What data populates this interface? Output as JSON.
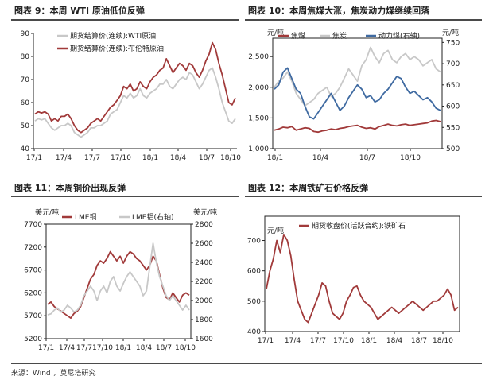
{
  "colors": {
    "red": "#a13a3a",
    "gray": "#c8c8c8",
    "blue": "#3f6aa1",
    "axis": "#222222"
  },
  "source": "来源：Wind ，莫尼塔研究",
  "chart_data": [
    {
      "id": "chart9",
      "title": "图表 9：本周 WTI 原油低位反弹",
      "type": "line",
      "x_ticks": [
        "17/1",
        "17/4",
        "17/7",
        "17/10",
        "18/1",
        "18/4",
        "18/7",
        "18/10"
      ],
      "ylim": [
        40,
        90
      ],
      "y_ticks": [
        40,
        50,
        60,
        70,
        80,
        90
      ],
      "legend": "top-left",
      "series": [
        {
          "name": "期货结算价(连续):WTI原油",
          "color": "gray",
          "values": [
            52,
            53,
            52.5,
            53,
            51,
            49,
            48,
            49,
            50,
            50,
            51,
            50,
            47,
            46,
            45,
            46,
            47,
            49,
            49,
            50,
            50,
            51,
            52,
            55,
            56,
            57,
            60,
            63,
            62,
            64,
            62,
            63,
            66,
            63,
            62,
            64,
            65,
            66,
            68,
            68,
            70,
            67,
            66,
            68,
            70,
            71,
            70,
            73,
            72,
            69,
            66,
            68,
            71,
            74,
            75,
            71,
            66,
            60,
            56,
            52,
            51,
            53
          ]
        },
        {
          "name": "期货结算价(连续):布伦特原油",
          "color": "red",
          "values": [
            55,
            56,
            55.5,
            56,
            55,
            52,
            53,
            52,
            54,
            54,
            55,
            53,
            50,
            48,
            47,
            48,
            49,
            51,
            52,
            53,
            52,
            54,
            56,
            58,
            59,
            61,
            63,
            67,
            66,
            68,
            65,
            66,
            69,
            67,
            66,
            69,
            71,
            72,
            74,
            75,
            79,
            76,
            73,
            75,
            77,
            76,
            74,
            77,
            76,
            73,
            71,
            74,
            78,
            81,
            86,
            83,
            77,
            72,
            66,
            60,
            59,
            62
          ]
        }
      ]
    },
    {
      "id": "chart10",
      "title": "图表 10：本周焦煤大涨，焦炭动力煤继续回落",
      "type": "line",
      "x_ticks": [
        "18/1",
        "18/4",
        "18/7",
        "18/10"
      ],
      "ylim": [
        1000,
        2800
      ],
      "y_ticks": [
        1000,
        1500,
        2000,
        2500
      ],
      "y_unit_left": "元/吨",
      "y2lim": [
        500,
        760
      ],
      "y2_ticks": [
        500,
        550,
        600,
        650,
        700,
        750
      ],
      "y_unit_right": "元/吨",
      "legend": "top",
      "series": [
        {
          "name": "焦煤",
          "axis": "left",
          "color": "red",
          "values": [
            1300,
            1320,
            1350,
            1340,
            1360,
            1300,
            1320,
            1340,
            1330,
            1280,
            1270,
            1290,
            1300,
            1320,
            1310,
            1330,
            1340,
            1360,
            1370,
            1380,
            1350,
            1330,
            1340,
            1320,
            1360,
            1380,
            1400,
            1380,
            1370,
            1390,
            1400,
            1380,
            1390,
            1400,
            1410,
            1420,
            1450,
            1460,
            1440
          ]
        },
        {
          "name": "焦炭",
          "axis": "left",
          "color": "gray",
          "values": [
            2000,
            2100,
            2150,
            2250,
            2100,
            1900,
            1800,
            1700,
            1750,
            1800,
            1900,
            1950,
            2000,
            1850,
            1900,
            2000,
            2150,
            2300,
            2200,
            2100,
            2350,
            2450,
            2650,
            2500,
            2400,
            2550,
            2600,
            2450,
            2400,
            2500,
            2550,
            2450,
            2500,
            2450,
            2350,
            2400,
            2450,
            2300,
            2250
          ]
        },
        {
          "name": "动力煤(右轴)",
          "axis": "right",
          "color": "blue",
          "values": [
            640,
            650,
            680,
            690,
            665,
            640,
            630,
            600,
            575,
            570,
            585,
            600,
            615,
            630,
            610,
            590,
            600,
            620,
            635,
            650,
            640,
            620,
            625,
            610,
            615,
            630,
            640,
            655,
            670,
            665,
            645,
            630,
            635,
            625,
            615,
            620,
            610,
            595,
            590
          ]
        }
      ]
    },
    {
      "id": "chart11",
      "title": "图表 11：本周铜价出现反弹",
      "type": "line",
      "x_ticks": [
        "17/1",
        "17/4",
        "17/7",
        "17/10",
        "18/1",
        "18/4",
        "18/7",
        "18/10"
      ],
      "ylim": [
        5200,
        7700
      ],
      "y_ticks": [
        5200,
        5700,
        6200,
        6700,
        7200,
        7700
      ],
      "y_unit_left": "美元/吨",
      "y2lim": [
        1600,
        2800
      ],
      "y2_ticks": [
        1600,
        1800,
        2000,
        2200,
        2400,
        2600,
        2800
      ],
      "y_unit_right": "美元/吨",
      "legend": "top",
      "series": [
        {
          "name": "LME铜",
          "axis": "left",
          "color": "red",
          "values": [
            5950,
            6000,
            5900,
            5850,
            5800,
            5750,
            5700,
            5650,
            5750,
            5800,
            5900,
            6100,
            6300,
            6500,
            6600,
            6800,
            6900,
            6850,
            6950,
            7100,
            7000,
            6900,
            7000,
            6850,
            7000,
            7100,
            7050,
            6950,
            6900,
            6800,
            6700,
            6800,
            7000,
            6900,
            6600,
            6300,
            6100,
            6050,
            6200,
            6100,
            6000,
            6150,
            6200,
            6150
          ]
        },
        {
          "name": "LME铝(右轴)",
          "axis": "right",
          "color": "gray",
          "values": [
            1850,
            1860,
            1900,
            1920,
            1880,
            1900,
            1950,
            1920,
            1880,
            1900,
            1950,
            2050,
            2100,
            2150,
            2100,
            2000,
            2100,
            2150,
            2080,
            2200,
            2250,
            2150,
            2100,
            2180,
            2250,
            2300,
            2250,
            2200,
            2150,
            2050,
            2100,
            2350,
            2600,
            2400,
            2250,
            2150,
            2050,
            2000,
            2050,
            2000,
            1950,
            1900,
            1950,
            1900
          ]
        }
      ]
    },
    {
      "id": "chart12",
      "title": "图表 12：本周铁矿石价格反弹",
      "type": "line",
      "x_ticks": [
        "17/1",
        "17/4",
        "17/7",
        "17/10",
        "18/1",
        "18/4",
        "18/7",
        "18/10"
      ],
      "ylim": [
        400,
        780
      ],
      "y_ticks": [
        400,
        500,
        600,
        700
      ],
      "y_unit_left": "元/吨",
      "legend": "top",
      "series": [
        {
          "name": "期货收盘价(活跃合约):铁矿石",
          "color": "red",
          "values": [
            540,
            600,
            640,
            700,
            660,
            720,
            700,
            650,
            570,
            500,
            470,
            440,
            430,
            460,
            490,
            520,
            560,
            550,
            500,
            460,
            450,
            440,
            460,
            500,
            520,
            545,
            550,
            520,
            500,
            490,
            480,
            460,
            440,
            450,
            460,
            470,
            480,
            470,
            460,
            470,
            480,
            490,
            500,
            490,
            480,
            470,
            480,
            490,
            500,
            500,
            510,
            520,
            540,
            520,
            470,
            480
          ]
        }
      ]
    }
  ]
}
